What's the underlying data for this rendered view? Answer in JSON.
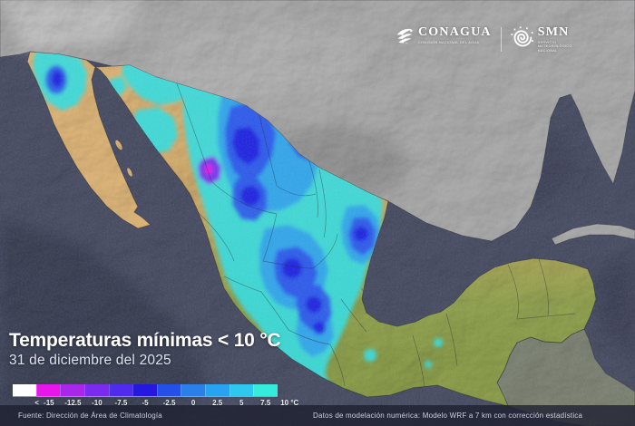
{
  "header": {
    "conagua": {
      "name": "CONAGUA",
      "subtitle": "COMISIÓN NACIONAL DEL AGUA"
    },
    "smn": {
      "name": "SMN",
      "subtitle_lines": [
        "SERVICIO",
        "METEOROLÓGICO",
        "NACIONAL"
      ]
    }
  },
  "panel": {
    "title": "Temperaturas mínimas < 10 °C",
    "date": "31 de diciembre del 2025"
  },
  "legend": {
    "less_than": "<",
    "ticks": [
      "-15",
      "-12.5",
      "-10",
      "-7.5",
      "-5",
      "-2.5",
      "0",
      "2.5",
      "5",
      "7.5",
      "10 °C"
    ],
    "colors": [
      "#ffffff",
      "#e716ea",
      "#a827e8",
      "#7b2bee",
      "#4f2bee",
      "#2317e0",
      "#2450e8",
      "#2a7fe8",
      "#27a3f0",
      "#2ec7ee",
      "#35ecdc"
    ]
  },
  "footer": {
    "source": "Fuente: Dirección de Área de Climatología",
    "model": "Datos de modelación numérica: Modelo WRF a 7 km con corrección estadística"
  },
  "colors": {
    "ocean": "#454a61",
    "land-gray": "#a8a8a8",
    "land-tan": "#dcb273",
    "land-olive": "#8fa04a",
    "land-foreign-south": "#7a8070",
    "temp-cyan": "#36dde0",
    "temp-light-blue": "#2f9dee",
    "temp-royal-blue": "#2a4cec",
    "temp-deep-blue": "#1c1ce0",
    "temp-violet": "#7b2bee",
    "temp-magenta": "#e814e8"
  }
}
